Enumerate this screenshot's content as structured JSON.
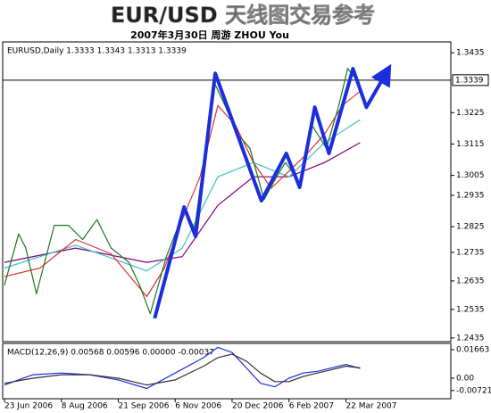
{
  "title": "EUR/USD 天线图交易参考",
  "subtitle": "2007年3月30日    周游 ZHOU You",
  "chart_data": [
    {
      "type": "line",
      "header": "EURUSD,Daily 1.3333 1.3343 1.3313 1.3339",
      "xlim": [
        -1,
        251
      ],
      "ylim": [
        1.2422,
        1.3473
      ],
      "yticks": [
        1.3435,
        1.3225,
        1.3115,
        1.3005,
        1.2935,
        1.2825,
        1.2735,
        1.2635,
        1.2535,
        1.2435
      ],
      "xticks": [
        {
          "value": 0,
          "label": "23 Jun 2006"
        },
        {
          "value": 32,
          "label": "8 Aug 2006"
        },
        {
          "value": 64,
          "label": "21 Sep 2006"
        },
        {
          "value": 96,
          "label": "6 Nov 2006"
        },
        {
          "value": 128,
          "label": "20 Dec 2006"
        },
        {
          "value": 160,
          "label": "6 Feb 2007"
        },
        {
          "value": 192,
          "label": "22 Mar 2007"
        }
      ],
      "price_line": 1.3339,
      "series": [
        {
          "color": "#800080",
          "x": [
            0,
            40,
            80,
            100,
            120,
            140,
            160,
            180,
            200
          ],
          "values": [
            1.27,
            1.275,
            1.27,
            1.272,
            1.29,
            1.3,
            1.3,
            1.305,
            1.312
          ]
        },
        {
          "color": "#40c0c0",
          "x": [
            0,
            40,
            80,
            100,
            120,
            140,
            160,
            180,
            200
          ],
          "values": [
            1.268,
            1.276,
            1.267,
            1.275,
            1.3,
            1.305,
            1.3,
            1.312,
            1.32
          ]
        },
        {
          "color": "#e03030",
          "x": [
            0,
            20,
            40,
            60,
            80,
            90,
            100,
            110,
            120,
            130,
            140,
            150,
            160,
            170,
            180,
            190,
            200
          ],
          "values": [
            1.265,
            1.268,
            1.278,
            1.273,
            1.258,
            1.268,
            1.285,
            1.3,
            1.325,
            1.318,
            1.305,
            1.296,
            1.302,
            1.308,
            1.315,
            1.325,
            1.33
          ]
        },
        {
          "color": "#1a7a1a",
          "x": [
            0,
            8,
            12,
            18,
            28,
            36,
            44,
            52,
            60,
            70,
            76,
            82,
            91,
            101,
            107,
            118,
            124,
            131,
            138,
            146,
            153,
            158,
            166,
            173,
            181,
            188,
            193,
            198
          ],
          "values": [
            1.262,
            1.28,
            1.275,
            1.259,
            1.283,
            1.283,
            1.278,
            1.285,
            1.275,
            1.27,
            1.262,
            1.252,
            1.272,
            1.288,
            1.282,
            1.333,
            1.325,
            1.315,
            1.31,
            1.292,
            1.3,
            1.305,
            1.298,
            1.318,
            1.31,
            1.325,
            1.338,
            1.334
          ]
        },
        {
          "color": "#1a2ee0",
          "x": [
            84.5,
            101,
            107.5,
            118.5,
            144.5,
            158.5,
            166,
            174.5,
            182.5,
            196,
            203.5,
            214.5
          ],
          "values": [
            1.2504,
            1.2894,
            1.2791,
            1.3363,
            1.2916,
            1.3082,
            1.2963,
            1.3244,
            1.3082,
            1.3379,
            1.3244,
            1.3363
          ]
        }
      ]
    },
    {
      "type": "line",
      "header": "MACD(12,26,9) 0.00568 0.00596 0.00000 -0.00037",
      "xlim": [
        -1,
        251
      ],
      "ylim": [
        -0.012,
        0.0203
      ],
      "yticks": [
        0.01663,
        {
          "value": 0,
          "label": "0.00"
        },
        -0.00721
      ],
      "series": [
        {
          "color": "#1a2ee0",
          "x": [
            0,
            16,
            32,
            48,
            64,
            80,
            96,
            112,
            120,
            128,
            136,
            144,
            152,
            160,
            168,
            176,
            184,
            192,
            200
          ],
          "values": [
            -0.004,
            0.002,
            0.003,
            0.002,
            -0.001,
            -0.006,
            0.003,
            0.012,
            0.018,
            0.015,
            0.006,
            -0.003,
            -0.005,
            0.0,
            0.003,
            0.004,
            0.006,
            0.008,
            0.0057
          ]
        },
        {
          "color": "#333333",
          "x": [
            0,
            16,
            32,
            48,
            64,
            80,
            96,
            112,
            120,
            128,
            136,
            144,
            152,
            160,
            168,
            176,
            184,
            192,
            200
          ],
          "values": [
            -0.003,
            0.0,
            0.002,
            0.002,
            0.0,
            -0.004,
            -0.001,
            0.007,
            0.012,
            0.014,
            0.01,
            0.003,
            -0.002,
            -0.002,
            0.001,
            0.003,
            0.005,
            0.007,
            0.006
          ]
        }
      ]
    }
  ]
}
